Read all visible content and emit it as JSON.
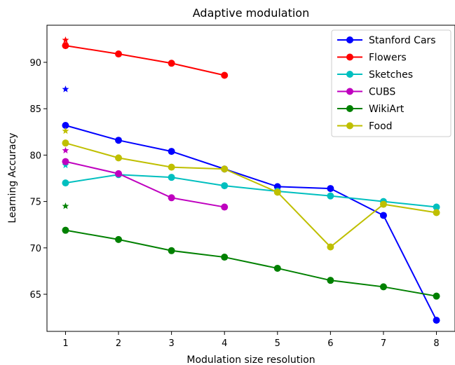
{
  "chart_data": {
    "type": "line",
    "title": "Adaptive modulation",
    "xlabel": "Modulation size resolution",
    "ylabel": "Learning Accuracy",
    "xlim": [
      0.65,
      8.35
    ],
    "ylim": [
      61.0,
      94.0
    ],
    "xticks": [
      1,
      2,
      3,
      4,
      5,
      6,
      7,
      8
    ],
    "yticks": [
      65,
      70,
      75,
      80,
      85,
      90
    ],
    "grid": false,
    "legend_position": "top-right",
    "series": [
      {
        "name": "Stanford Cars",
        "color": "#0000ff",
        "x": [
          1,
          2,
          3,
          4,
          5,
          6,
          7,
          8
        ],
        "y": [
          83.2,
          81.6,
          80.4,
          78.5,
          76.6,
          76.4,
          73.5,
          62.2
        ],
        "star": 87.1
      },
      {
        "name": "Flowers",
        "color": "#ff0000",
        "x": [
          1,
          2,
          3,
          4
        ],
        "y": [
          91.8,
          90.9,
          89.9,
          88.6
        ],
        "star": 92.4
      },
      {
        "name": "Sketches",
        "color": "#00bfbf",
        "x": [
          1,
          2,
          3,
          4,
          5,
          6,
          7,
          8
        ],
        "y": [
          77.0,
          77.9,
          77.6,
          76.7,
          76.1,
          75.6,
          75.0,
          74.4
        ],
        "star": 78.9
      },
      {
        "name": "CUBS",
        "color": "#bf00bf",
        "x": [
          1,
          2,
          3,
          4
        ],
        "y": [
          79.3,
          78.0,
          75.4,
          74.4
        ],
        "star": 80.5
      },
      {
        "name": "WikiArt",
        "color": "#008000",
        "x": [
          1,
          2,
          3,
          4,
          5,
          6,
          7,
          8
        ],
        "y": [
          71.9,
          70.9,
          69.7,
          69.0,
          67.8,
          66.5,
          65.8,
          64.8
        ],
        "star": 74.5
      },
      {
        "name": "Food",
        "color": "#bfbf00",
        "x": [
          1,
          2,
          3,
          4,
          5,
          6,
          7,
          8
        ],
        "y": [
          81.3,
          79.7,
          78.7,
          78.5,
          76.0,
          70.1,
          74.7,
          73.8
        ],
        "star": 82.6
      }
    ]
  }
}
